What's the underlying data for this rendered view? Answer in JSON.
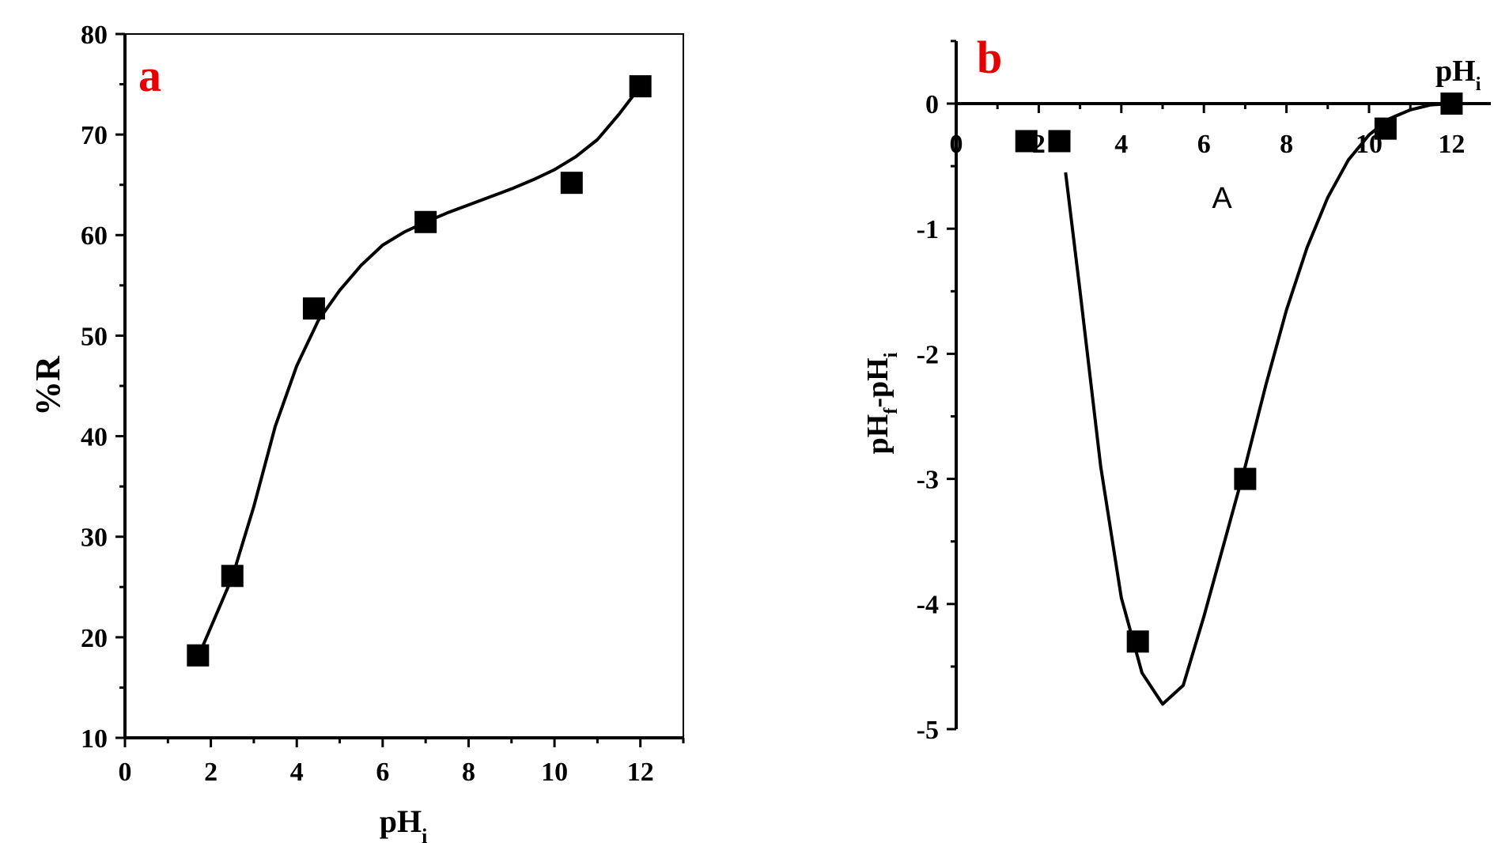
{
  "chart_data": [
    {
      "type": "scatter",
      "panel_label": "a",
      "xlabel": "pH",
      "xlabel_sub": "i",
      "ylabel": "%R",
      "xlim": [
        0,
        13
      ],
      "ylim": [
        10,
        80
      ],
      "x_ticks": [
        "0",
        "2",
        "4",
        "6",
        "8",
        "10",
        "12"
      ],
      "y_ticks": [
        "10",
        "20",
        "30",
        "40",
        "50",
        "60",
        "70",
        "80"
      ],
      "series": [
        {
          "x": [
            1.7,
            2.5,
            4.4,
            7.0,
            10.4,
            12.0
          ],
          "y": [
            18.2,
            26.1,
            52.7,
            61.3,
            65.2,
            74.8
          ]
        }
      ],
      "fit_curve": [
        [
          1.7,
          18
        ],
        [
          2.0,
          21
        ],
        [
          2.5,
          26
        ],
        [
          3.0,
          33
        ],
        [
          3.5,
          41
        ],
        [
          4.0,
          47
        ],
        [
          4.5,
          51.5
        ],
        [
          5.0,
          54.5
        ],
        [
          5.5,
          57
        ],
        [
          6.0,
          59
        ],
        [
          6.5,
          60.3
        ],
        [
          7.0,
          61.3
        ],
        [
          7.5,
          62.2
        ],
        [
          8.0,
          63
        ],
        [
          8.5,
          63.8
        ],
        [
          9.0,
          64.6
        ],
        [
          9.5,
          65.5
        ],
        [
          10.0,
          66.5
        ],
        [
          10.5,
          67.8
        ],
        [
          11.0,
          69.5
        ],
        [
          11.5,
          72
        ],
        [
          12.0,
          74.8
        ]
      ],
      "grid": false,
      "colors": {
        "markers": "#000000",
        "curve": "#000000",
        "panel_label": "#e60000"
      }
    },
    {
      "type": "scatter",
      "panel_label": "b",
      "xlabel": "pH",
      "xlabel_sub": "i",
      "ylabel": "pH",
      "ylabel_sub1": "f",
      "ylabel_mid": "-pH",
      "ylabel_sub2": "i",
      "annotation": "A",
      "xlim": [
        0,
        12.6
      ],
      "ylim": [
        -5,
        0.5
      ],
      "x_ticks": [
        "0",
        "2",
        "4",
        "6",
        "8",
        "10",
        "12"
      ],
      "y_ticks": [
        "0",
        "-1",
        "-2",
        "-3",
        "-4",
        "-5"
      ],
      "series": [
        {
          "x": [
            1.7,
            2.5,
            4.4,
            7.0,
            10.4,
            12.0
          ],
          "y": [
            -0.3,
            -0.3,
            -4.3,
            -3.0,
            -0.2,
            0.0
          ]
        }
      ],
      "fit_curve": [
        [
          2.65,
          -0.55
        ],
        [
          3.0,
          -1.5
        ],
        [
          3.5,
          -2.9
        ],
        [
          4.0,
          -3.95
        ],
        [
          4.5,
          -4.55
        ],
        [
          5.0,
          -4.8
        ],
        [
          5.5,
          -4.65
        ],
        [
          6.0,
          -4.1
        ],
        [
          6.5,
          -3.5
        ],
        [
          7.0,
          -2.9
        ],
        [
          7.5,
          -2.25
        ],
        [
          8.0,
          -1.65
        ],
        [
          8.5,
          -1.15
        ],
        [
          9.0,
          -0.75
        ],
        [
          9.5,
          -0.45
        ],
        [
          10.0,
          -0.25
        ],
        [
          10.5,
          -0.12
        ],
        [
          11.0,
          -0.05
        ],
        [
          11.5,
          -0.01
        ],
        [
          12.0,
          0.0
        ]
      ],
      "grid": false,
      "colors": {
        "markers": "#000000",
        "curve": "#000000",
        "panel_label": "#e60000"
      }
    }
  ]
}
